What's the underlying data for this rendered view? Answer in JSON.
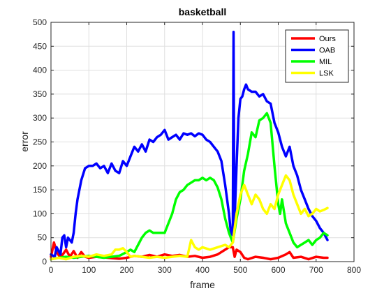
{
  "chart_data": {
    "type": "line",
    "title": "basketball",
    "xlabel": "frame",
    "ylabel": "error",
    "xlim": [
      0,
      800
    ],
    "ylim": [
      0,
      500
    ],
    "xticks": [
      0,
      100,
      200,
      300,
      400,
      500,
      600,
      700,
      800
    ],
    "yticks": [
      0,
      50,
      100,
      150,
      200,
      250,
      300,
      350,
      400,
      450,
      500
    ],
    "grid": true,
    "legend_position": "top-right",
    "series": [
      {
        "name": "Ours",
        "color": "#ff0000",
        "points": [
          [
            0,
            10
          ],
          [
            8,
            40
          ],
          [
            15,
            20
          ],
          [
            25,
            8
          ],
          [
            40,
            25
          ],
          [
            50,
            10
          ],
          [
            60,
            22
          ],
          [
            70,
            8
          ],
          [
            80,
            20
          ],
          [
            90,
            10
          ],
          [
            100,
            8
          ],
          [
            120,
            10
          ],
          [
            150,
            8
          ],
          [
            180,
            6
          ],
          [
            200,
            8
          ],
          [
            220,
            12
          ],
          [
            240,
            10
          ],
          [
            260,
            14
          ],
          [
            280,
            10
          ],
          [
            300,
            15
          ],
          [
            320,
            12
          ],
          [
            340,
            14
          ],
          [
            360,
            10
          ],
          [
            380,
            12
          ],
          [
            400,
            8
          ],
          [
            420,
            10
          ],
          [
            440,
            15
          ],
          [
            460,
            25
          ],
          [
            470,
            30
          ],
          [
            480,
            30
          ],
          [
            485,
            10
          ],
          [
            490,
            25
          ],
          [
            500,
            20
          ],
          [
            510,
            8
          ],
          [
            520,
            5
          ],
          [
            540,
            10
          ],
          [
            560,
            8
          ],
          [
            580,
            5
          ],
          [
            600,
            8
          ],
          [
            620,
            15
          ],
          [
            630,
            20
          ],
          [
            640,
            8
          ],
          [
            660,
            10
          ],
          [
            680,
            5
          ],
          [
            700,
            10
          ],
          [
            720,
            8
          ],
          [
            730,
            8
          ]
        ]
      },
      {
        "name": "OAB",
        "color": "#0000ff",
        "points": [
          [
            0,
            15
          ],
          [
            10,
            10
          ],
          [
            15,
            30
          ],
          [
            25,
            15
          ],
          [
            30,
            50
          ],
          [
            35,
            55
          ],
          [
            40,
            30
          ],
          [
            45,
            50
          ],
          [
            55,
            40
          ],
          [
            60,
            60
          ],
          [
            65,
            100
          ],
          [
            70,
            130
          ],
          [
            80,
            170
          ],
          [
            90,
            195
          ],
          [
            100,
            200
          ],
          [
            110,
            200
          ],
          [
            120,
            205
          ],
          [
            130,
            195
          ],
          [
            140,
            200
          ],
          [
            150,
            185
          ],
          [
            160,
            205
          ],
          [
            170,
            190
          ],
          [
            180,
            185
          ],
          [
            190,
            210
          ],
          [
            200,
            200
          ],
          [
            210,
            220
          ],
          [
            220,
            240
          ],
          [
            230,
            230
          ],
          [
            240,
            245
          ],
          [
            250,
            230
          ],
          [
            260,
            255
          ],
          [
            270,
            250
          ],
          [
            280,
            260
          ],
          [
            290,
            265
          ],
          [
            300,
            275
          ],
          [
            310,
            255
          ],
          [
            320,
            260
          ],
          [
            330,
            265
          ],
          [
            340,
            255
          ],
          [
            350,
            268
          ],
          [
            360,
            265
          ],
          [
            370,
            268
          ],
          [
            380,
            262
          ],
          [
            390,
            268
          ],
          [
            400,
            265
          ],
          [
            410,
            255
          ],
          [
            420,
            250
          ],
          [
            430,
            240
          ],
          [
            440,
            230
          ],
          [
            450,
            210
          ],
          [
            460,
            160
          ],
          [
            470,
            100
          ],
          [
            475,
            60
          ],
          [
            480,
            55
          ],
          [
            482,
            480
          ],
          [
            484,
            70
          ],
          [
            490,
            200
          ],
          [
            495,
            300
          ],
          [
            500,
            340
          ],
          [
            505,
            345
          ],
          [
            510,
            360
          ],
          [
            515,
            370
          ],
          [
            520,
            360
          ],
          [
            530,
            355
          ],
          [
            540,
            355
          ],
          [
            550,
            345
          ],
          [
            560,
            350
          ],
          [
            570,
            335
          ],
          [
            580,
            330
          ],
          [
            590,
            290
          ],
          [
            600,
            270
          ],
          [
            610,
            240
          ],
          [
            620,
            220
          ],
          [
            630,
            240
          ],
          [
            640,
            200
          ],
          [
            650,
            180
          ],
          [
            660,
            150
          ],
          [
            670,
            130
          ],
          [
            680,
            110
          ],
          [
            690,
            95
          ],
          [
            700,
            85
          ],
          [
            710,
            70
          ],
          [
            720,
            60
          ],
          [
            730,
            45
          ]
        ]
      },
      {
        "name": "MIL",
        "color": "#00ff00",
        "points": [
          [
            0,
            5
          ],
          [
            20,
            8
          ],
          [
            40,
            10
          ],
          [
            60,
            8
          ],
          [
            80,
            10
          ],
          [
            100,
            12
          ],
          [
            120,
            10
          ],
          [
            140,
            8
          ],
          [
            160,
            10
          ],
          [
            180,
            12
          ],
          [
            200,
            20
          ],
          [
            210,
            25
          ],
          [
            220,
            20
          ],
          [
            230,
            35
          ],
          [
            240,
            50
          ],
          [
            250,
            60
          ],
          [
            260,
            65
          ],
          [
            270,
            60
          ],
          [
            280,
            60
          ],
          [
            290,
            60
          ],
          [
            300,
            60
          ],
          [
            310,
            80
          ],
          [
            320,
            100
          ],
          [
            330,
            130
          ],
          [
            340,
            145
          ],
          [
            350,
            150
          ],
          [
            360,
            160
          ],
          [
            370,
            165
          ],
          [
            380,
            170
          ],
          [
            390,
            170
          ],
          [
            400,
            175
          ],
          [
            410,
            170
          ],
          [
            420,
            175
          ],
          [
            430,
            170
          ],
          [
            440,
            155
          ],
          [
            450,
            130
          ],
          [
            460,
            90
          ],
          [
            470,
            60
          ],
          [
            475,
            50
          ],
          [
            480,
            40
          ],
          [
            490,
            90
          ],
          [
            500,
            130
          ],
          [
            510,
            190
          ],
          [
            520,
            225
          ],
          [
            530,
            270
          ],
          [
            540,
            260
          ],
          [
            550,
            295
          ],
          [
            560,
            300
          ],
          [
            570,
            310
          ],
          [
            580,
            290
          ],
          [
            590,
            200
          ],
          [
            600,
            120
          ],
          [
            605,
            100
          ],
          [
            610,
            130
          ],
          [
            620,
            80
          ],
          [
            630,
            60
          ],
          [
            640,
            40
          ],
          [
            650,
            30
          ],
          [
            660,
            35
          ],
          [
            670,
            40
          ],
          [
            680,
            45
          ],
          [
            690,
            35
          ],
          [
            700,
            45
          ],
          [
            710,
            50
          ],
          [
            720,
            60
          ],
          [
            730,
            55
          ]
        ]
      },
      {
        "name": "LSK",
        "color": "#ffff00",
        "points": [
          [
            0,
            5
          ],
          [
            20,
            8
          ],
          [
            40,
            5
          ],
          [
            60,
            10
          ],
          [
            80,
            12
          ],
          [
            100,
            10
          ],
          [
            120,
            15
          ],
          [
            140,
            12
          ],
          [
            160,
            15
          ],
          [
            170,
            25
          ],
          [
            180,
            25
          ],
          [
            190,
            28
          ],
          [
            200,
            20
          ],
          [
            210,
            10
          ],
          [
            220,
            12
          ],
          [
            240,
            10
          ],
          [
            260,
            8
          ],
          [
            280,
            10
          ],
          [
            300,
            8
          ],
          [
            320,
            10
          ],
          [
            340,
            12
          ],
          [
            360,
            10
          ],
          [
            370,
            45
          ],
          [
            380,
            30
          ],
          [
            390,
            25
          ],
          [
            400,
            30
          ],
          [
            420,
            25
          ],
          [
            440,
            30
          ],
          [
            460,
            35
          ],
          [
            470,
            30
          ],
          [
            480,
            40
          ],
          [
            490,
            100
          ],
          [
            500,
            140
          ],
          [
            510,
            160
          ],
          [
            520,
            140
          ],
          [
            530,
            120
          ],
          [
            540,
            140
          ],
          [
            550,
            130
          ],
          [
            560,
            110
          ],
          [
            570,
            100
          ],
          [
            580,
            120
          ],
          [
            590,
            110
          ],
          [
            600,
            140
          ],
          [
            610,
            160
          ],
          [
            620,
            180
          ],
          [
            630,
            170
          ],
          [
            640,
            140
          ],
          [
            650,
            120
          ],
          [
            660,
            100
          ],
          [
            670,
            110
          ],
          [
            680,
            95
          ],
          [
            690,
            100
          ],
          [
            700,
            110
          ],
          [
            710,
            105
          ],
          [
            720,
            108
          ],
          [
            730,
            112
          ]
        ]
      }
    ]
  }
}
